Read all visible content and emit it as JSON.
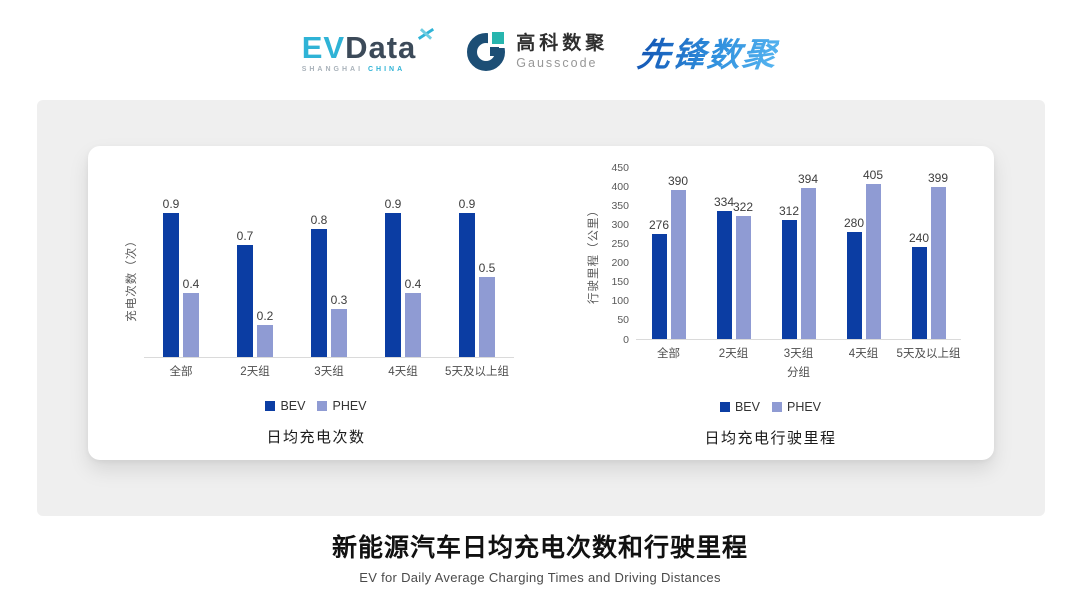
{
  "header": {
    "evdata": {
      "ev": "EV",
      "data": "Data",
      "sub_left": "SHANGHAI",
      "sub_right": "CHINA"
    },
    "gausscode": {
      "cn": "高科数聚",
      "en": "Gausscode"
    },
    "pioneer": "先锋数聚"
  },
  "colors": {
    "bev": "#0b3da3",
    "phev": "#8f9bd3",
    "baseline": "#dadada",
    "panel": "#efefef"
  },
  "chart_data": [
    {
      "type": "bar",
      "title": "日均充电次数",
      "ylabel": "充电次数（次）",
      "xlabel": "",
      "categories": [
        "全部",
        "2天组",
        "3天组",
        "4天组",
        "5天及以上组"
      ],
      "series": [
        {
          "name": "BEV",
          "values": [
            0.9,
            0.7,
            0.8,
            0.9,
            0.9
          ]
        },
        {
          "name": "PHEV",
          "values": [
            0.4,
            0.2,
            0.3,
            0.4,
            0.5
          ]
        }
      ],
      "ylim": [
        0,
        1.0
      ],
      "yticks": [],
      "grid": false,
      "legend": [
        "BEV",
        "PHEV"
      ],
      "legend_position": "bottom"
    },
    {
      "type": "bar",
      "title": "日均充电行驶里程",
      "ylabel": "行驶里程（公里）",
      "xlabel": "分组",
      "categories": [
        "全部",
        "2天组",
        "3天组",
        "4天组",
        "5天及以上组"
      ],
      "series": [
        {
          "name": "BEV",
          "values": [
            276,
            334,
            312,
            280,
            240
          ]
        },
        {
          "name": "PHEV",
          "values": [
            390,
            322,
            394,
            405,
            399
          ]
        }
      ],
      "ylim": [
        0,
        450
      ],
      "yticks": [
        0,
        50,
        100,
        150,
        200,
        250,
        300,
        350,
        400,
        450
      ],
      "grid": false,
      "legend": [
        "BEV",
        "PHEV"
      ],
      "legend_position": "bottom"
    }
  ],
  "footer": {
    "title": "新能源汽车日均充电次数和行驶里程",
    "subtitle": "EV for Daily Average Charging Times and Driving Distances"
  }
}
